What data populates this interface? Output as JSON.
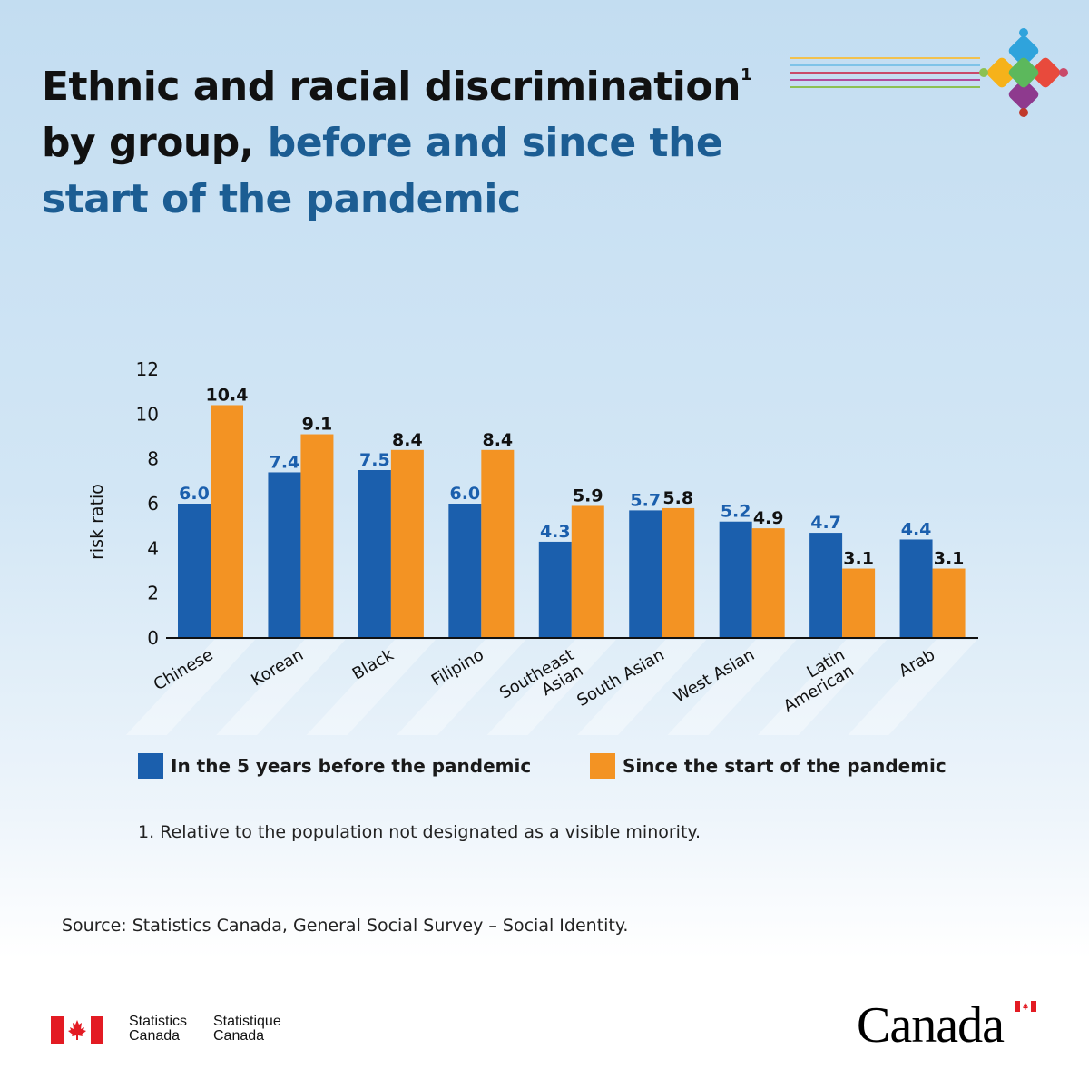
{
  "title": {
    "part1": "Ethnic and racial discrimination",
    "superscript": "1",
    "part2": "by group,",
    "part3": "before and since the start of the pandemic"
  },
  "colors": {
    "before": "#1b5fad",
    "since": "#f39323",
    "title_highlight": "#1c5d93"
  },
  "chart_data": {
    "type": "bar",
    "ylabel": "risk ratio",
    "ylim": [
      0,
      12
    ],
    "yticks": [
      0,
      2,
      4,
      6,
      8,
      10,
      12
    ],
    "grid": false,
    "legend_placement": "bottom",
    "categories": [
      [
        "Chinese"
      ],
      [
        "Korean"
      ],
      [
        "Black"
      ],
      [
        "Filipino"
      ],
      [
        "Southeast",
        "Asian"
      ],
      [
        "South Asian"
      ],
      [
        "West Asian"
      ],
      [
        "Latin",
        "American"
      ],
      [
        "Arab"
      ]
    ],
    "series": [
      {
        "name": "In the 5 years before the pandemic",
        "color": "#1b5fad",
        "label_color": "#1b5fad",
        "values": [
          6.0,
          7.4,
          7.5,
          6.0,
          4.3,
          5.7,
          5.2,
          4.7,
          4.4
        ]
      },
      {
        "name": "Since the start of the pandemic",
        "color": "#f39323",
        "label_color": "#111111",
        "values": [
          10.4,
          9.1,
          8.4,
          8.4,
          5.9,
          5.8,
          4.9,
          3.1,
          3.1
        ]
      }
    ]
  },
  "footnote": "1. Relative to the population not designated as a visible minority.",
  "source": "Source: Statistics Canada, General Social Survey – Social Identity.",
  "branding": {
    "stat_en_line1": "Statistics",
    "stat_en_line2": "Canada",
    "stat_fr_line1": "Statistique",
    "stat_fr_line2": "Canada",
    "wordmark": "Canada"
  }
}
